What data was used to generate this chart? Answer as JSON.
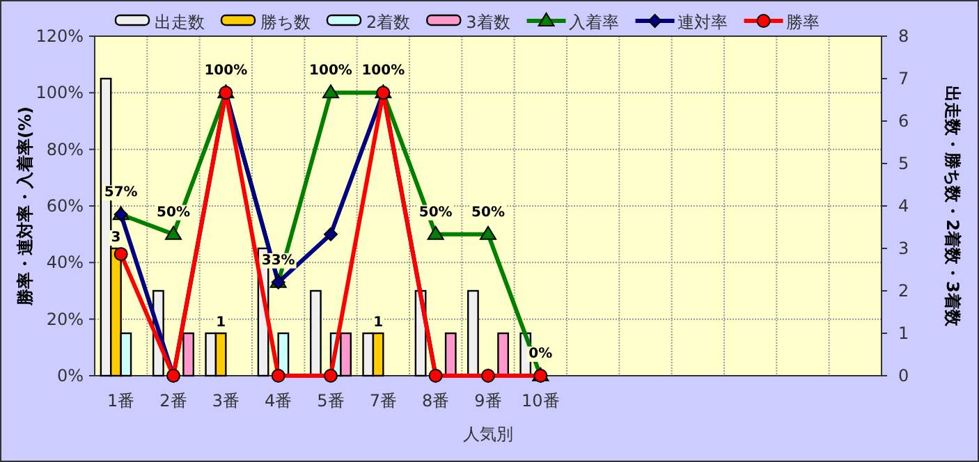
{
  "chart_data": {
    "type": "bar",
    "xlabel": "人気別",
    "ylabel": "勝率・連対率・入着率(%)",
    "y2label": "出走数・勝ち数・2着数・3着数",
    "categories": [
      "1番",
      "2番",
      "3番",
      "4番",
      "5番",
      "7番",
      "8番",
      "9番",
      "10番",
      null,
      null,
      null,
      null,
      null,
      null
    ],
    "series": [
      {
        "name": "出走数",
        "axis": "y2",
        "color": "#f0f0f0",
        "values": [
          7,
          2,
          1,
          3,
          2,
          1,
          2,
          2,
          1,
          null,
          null,
          null,
          null,
          null,
          null
        ]
      },
      {
        "name": "勝ち数",
        "axis": "y2",
        "color": "#ffcc00",
        "values": [
          3,
          0,
          1,
          0,
          0,
          1,
          0,
          0,
          0,
          null,
          null,
          null,
          null,
          null,
          null
        ],
        "value_labels": [
          "3",
          null,
          "1",
          null,
          null,
          "1",
          null,
          null,
          null,
          null,
          null,
          null,
          null,
          null,
          null
        ]
      },
      {
        "name": "2着数",
        "axis": "y2",
        "color": "#ccffff",
        "values": [
          1,
          0,
          0,
          1,
          1,
          0,
          0,
          0,
          0,
          null,
          null,
          null,
          null,
          null,
          null
        ]
      },
      {
        "name": "3着数",
        "axis": "y2",
        "color": "#ff99cc",
        "values": [
          0,
          1,
          0,
          0,
          1,
          0,
          1,
          1,
          0,
          null,
          null,
          null,
          null,
          null,
          null
        ]
      },
      {
        "name": "入着率",
        "type": "line",
        "marker": "triangle",
        "color": "#008000",
        "values": [
          57,
          50,
          100,
          33,
          100,
          100,
          50,
          50,
          0,
          null,
          null,
          null,
          null,
          null,
          null
        ],
        "value_labels": [
          "57%",
          "50%",
          "100%",
          "33%",
          "100%",
          "100%",
          "50%",
          "50%",
          "0%",
          null,
          null,
          null,
          null,
          null,
          null
        ]
      },
      {
        "name": "連対率",
        "type": "line",
        "marker": "diamond",
        "color": "#000080",
        "values": [
          57,
          0,
          100,
          33,
          50,
          100,
          0,
          0,
          0,
          null,
          null,
          null,
          null,
          null,
          null
        ]
      },
      {
        "name": "勝率",
        "type": "line",
        "marker": "circle",
        "color": "#ff0000",
        "values": [
          43,
          0,
          100,
          0,
          0,
          100,
          0,
          0,
          0,
          null,
          null,
          null,
          null,
          null,
          null
        ]
      }
    ],
    "ylim": [
      0,
      120
    ],
    "yticks": [
      {
        "value": 0,
        "label": "0%"
      },
      {
        "value": 20,
        "label": "20%"
      },
      {
        "value": 40,
        "label": "40%"
      },
      {
        "value": 60,
        "label": "60%"
      },
      {
        "value": 80,
        "label": "80%"
      },
      {
        "value": 100,
        "label": "100%"
      },
      {
        "value": 120,
        "label": "120%"
      }
    ],
    "y2lim": [
      0,
      8
    ],
    "y2ticks": [
      0,
      1,
      2,
      3,
      4,
      5,
      6,
      7,
      8
    ],
    "grid": true,
    "legend": "top"
  }
}
